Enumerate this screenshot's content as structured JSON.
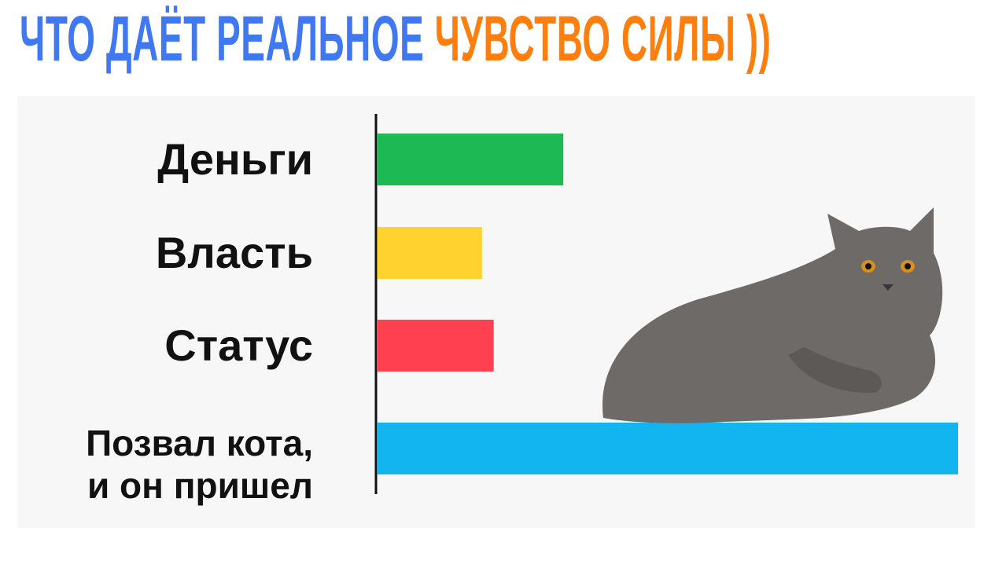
{
  "title": {
    "part1": "ЧТО ДАЁТ РЕАЛЬНОЕ ",
    "part2": "ЧУВСТВО СИЛЫ ))",
    "color1": "#3f78f0",
    "color2": "#ff7f0e"
  },
  "chart_data": {
    "type": "bar",
    "orientation": "horizontal",
    "categories": [
      "Деньги",
      "Власть",
      "Статус",
      "Позвал кота, и он пришел"
    ],
    "category_lines": [
      [
        "Деньги"
      ],
      [
        "Власть"
      ],
      [
        "Статус"
      ],
      [
        "Позвал кота,",
        "и он пришел"
      ]
    ],
    "values": [
      32,
      18,
      20,
      100
    ],
    "colors": [
      "#1db954",
      "#ffd230",
      "#ff4050",
      "#12b5f0"
    ],
    "xlim": [
      0,
      100
    ],
    "grid": false,
    "legend": "none",
    "title": "",
    "xlabel": "",
    "ylabel": ""
  },
  "image": {
    "subject": "cat-icon",
    "fur_color": "#6e6a68",
    "eye_color": "#d8901a"
  }
}
